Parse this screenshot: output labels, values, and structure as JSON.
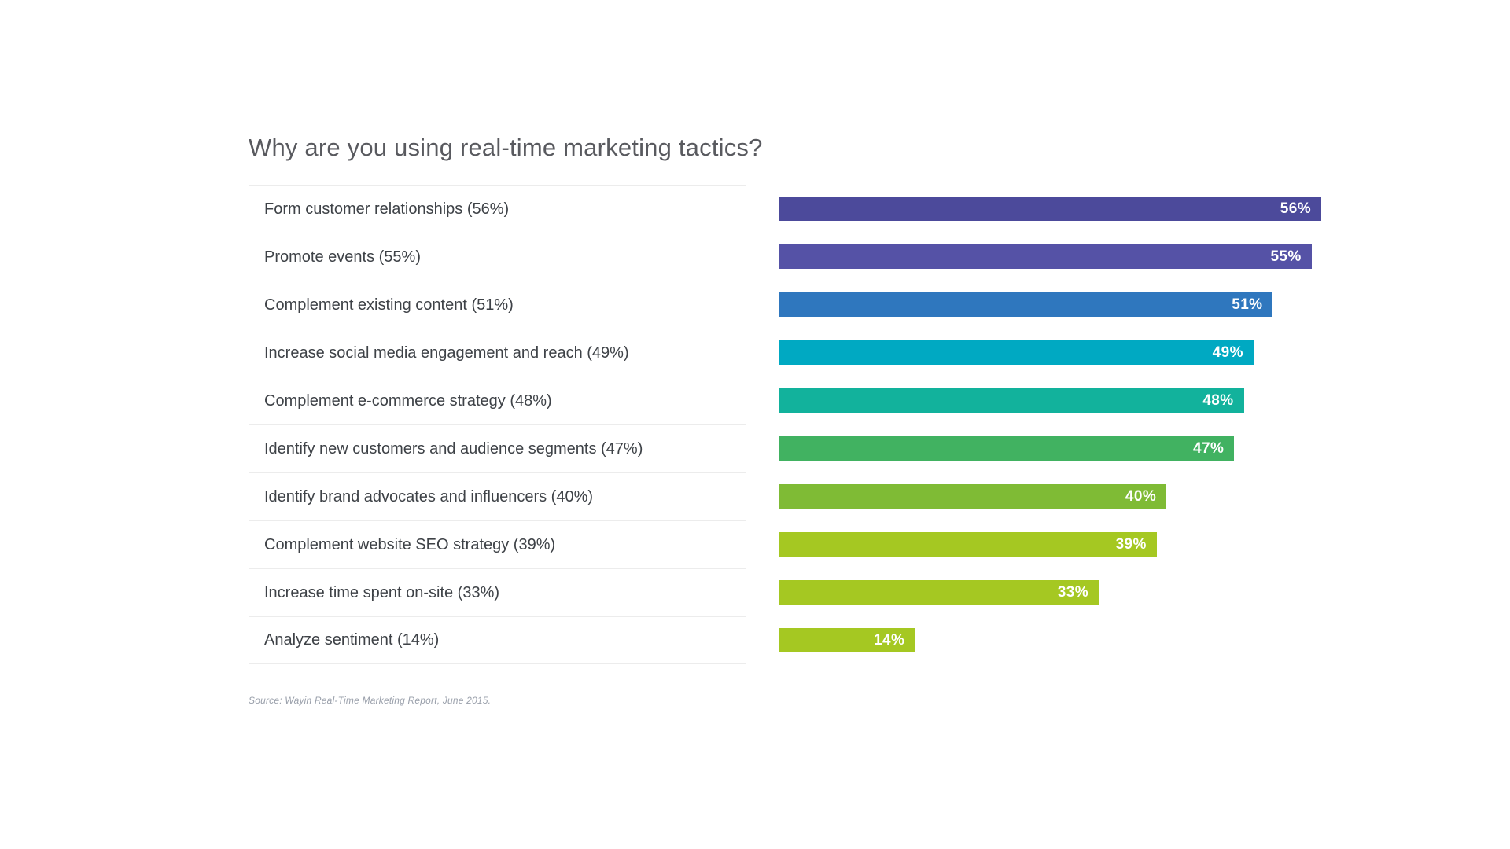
{
  "page": {
    "background": "#ffffff"
  },
  "chart_data": {
    "type": "bar",
    "orientation": "horizontal",
    "title": "Why are you using real-time marketing tactics?",
    "source_note": "Source: Wayin Real-Time Marketing Report, June 2015.",
    "categories": [
      "Form customer relationships (56%)",
      "Promote events (55%)",
      "Complement existing content (51%)",
      "Increase social media engagement and reach (49%)",
      "Complement e-commerce strategy (48%)",
      "Identify new customers and audience segments (47%)",
      "Identify brand advocates and influencers (40%)",
      "Complement website SEO strategy (39%)",
      "Increase time spent on-site (33%)",
      "Analyze sentiment (14%)"
    ],
    "values": [
      56,
      55,
      51,
      49,
      48,
      47,
      40,
      39,
      33,
      14
    ],
    "value_labels": [
      "56%",
      "55%",
      "51%",
      "49%",
      "48%",
      "47%",
      "40%",
      "39%",
      "33%",
      "14%"
    ],
    "bar_colors": [
      "#4c4a9b",
      "#5552a6",
      "#2f77be",
      "#00a9c2",
      "#12b29c",
      "#41b261",
      "#7fbb35",
      "#a5c822",
      "#a5c822",
      "#a5c822"
    ],
    "xlabel": "",
    "ylabel": "",
    "axis_max": 56,
    "grid": false,
    "legend": false,
    "value_label_position": "inside-end",
    "value_label_color": "#ffffff"
  }
}
